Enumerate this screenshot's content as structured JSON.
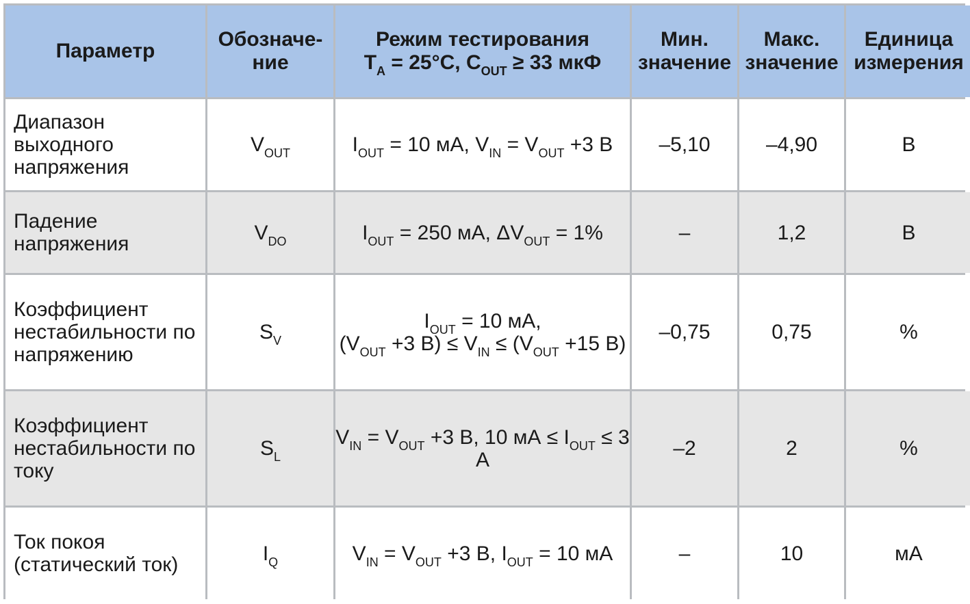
{
  "header": {
    "param": "Параметр",
    "symbol": "Обозначе-\nние",
    "mode_line1": "Режим тестирования",
    "mode_line2_a": "T",
    "mode_line2_a_sub": "A",
    "mode_line2_b": " = 25°C, C",
    "mode_line2_b_sub": "OUT",
    "mode_line2_c": " ≥ 33 мкФ",
    "min": "Мин.\nзначение",
    "max": "Макс.\nзначение",
    "unit": "Единица\nизмерения"
  },
  "rows": [
    {
      "param": "Диапазон выходного\nнапряжения",
      "sym": "V",
      "sym_sub": "OUT",
      "cond": [
        {
          "t": "I"
        },
        {
          "s": "OUT"
        },
        {
          "t": " = 10 мА, V"
        },
        {
          "s": "IN"
        },
        {
          "t": " = V"
        },
        {
          "s": "OUT"
        },
        {
          "t": " +3 В"
        }
      ],
      "min": "–5,10",
      "max": "–4,90",
      "unit": "В"
    },
    {
      "param": "Падение напряжения",
      "sym": "V",
      "sym_sub": "DO",
      "cond": [
        {
          "t": "I"
        },
        {
          "s": "OUT"
        },
        {
          "t": " = 250 мА, ΔV"
        },
        {
          "s": "OUT"
        },
        {
          "t": " = 1%"
        }
      ],
      "min": "–",
      "max": "1,2",
      "unit": "В"
    },
    {
      "param": "Коэффициент\nнестабильности по\nнапряжению",
      "sym": "S",
      "sym_sub": "V",
      "cond_line1": [
        {
          "t": "I"
        },
        {
          "s": "OUT"
        },
        {
          "t": " = 10 мА,"
        }
      ],
      "cond": [
        {
          "t": "(V"
        },
        {
          "s": "OUT"
        },
        {
          "t": " +3 В) ≤ V"
        },
        {
          "s": "IN"
        },
        {
          "t": " ≤ (V"
        },
        {
          "s": "OUT"
        },
        {
          "t": " +15 В)"
        }
      ],
      "min": "–0,75",
      "max": "0,75",
      "unit": "%"
    },
    {
      "param": "Коэффициент\nнестабильности по\nтоку",
      "sym": "S",
      "sym_sub": "L",
      "cond": [
        {
          "t": "V"
        },
        {
          "s": "IN"
        },
        {
          "t": " = V"
        },
        {
          "s": "OUT"
        },
        {
          "t": " +3 В, 10 мА ≤ I"
        },
        {
          "s": "OUT"
        },
        {
          "t": " ≤ 3 А"
        }
      ],
      "min": "–2",
      "max": "2",
      "unit": "%"
    },
    {
      "param": "Ток покоя\n(статический ток)",
      "sym": "I",
      "sym_sub": "Q",
      "cond": [
        {
          "t": "V"
        },
        {
          "s": "IN"
        },
        {
          "t": " = V"
        },
        {
          "s": "OUT"
        },
        {
          "t": " +3 В, I"
        },
        {
          "s": "OUT"
        },
        {
          "t": " = 10 мА"
        }
      ],
      "min": "–",
      "max": "10",
      "unit": "мА"
    }
  ],
  "colors": {
    "header_bg": "#a9c4e8",
    "row_white": "#ffffff",
    "row_grey": "#e6e6e6",
    "grid": "#b9bcc0"
  }
}
